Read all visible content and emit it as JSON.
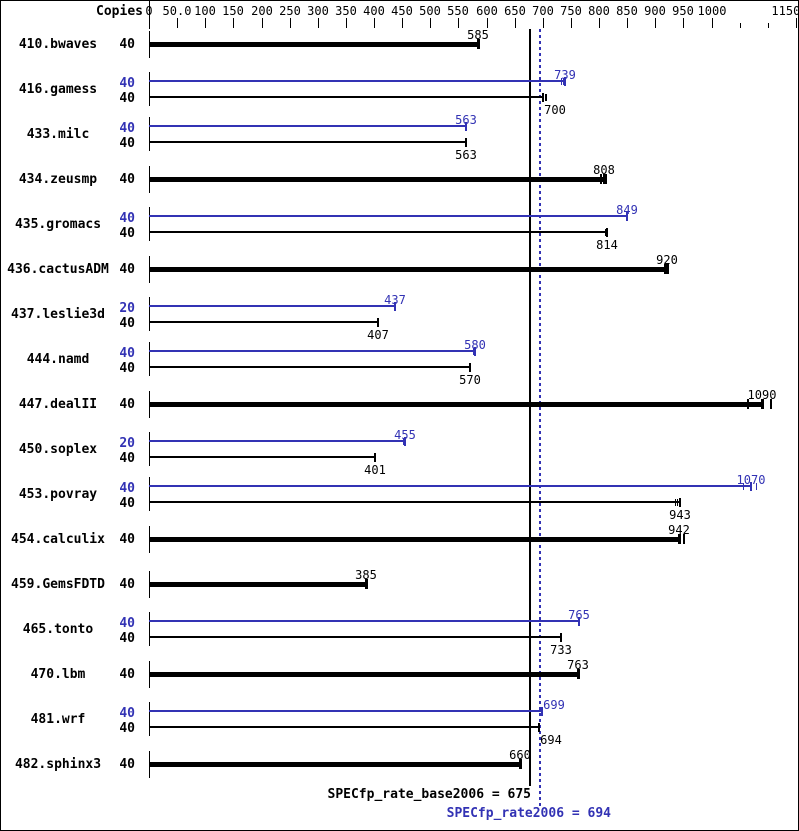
{
  "header": {
    "copies_label": "Copies"
  },
  "colors": {
    "base": "#000000",
    "peak": "#3232b4",
    "background": "#ffffff"
  },
  "footer": {
    "base_label": "SPECfp_rate_base2006 = 675",
    "peak_label": "SPECfp_rate2006 = 694"
  },
  "chart_data": {
    "type": "bar",
    "orientation": "horizontal",
    "title": "",
    "xlabel": "",
    "ylabel": "Copies",
    "xlim": [
      0,
      1150
    ],
    "grid": false,
    "axis": {
      "tick_step": 50,
      "labeled_ticks": [
        {
          "v": 0,
          "label": "0"
        },
        {
          "v": 50,
          "label": "50.0"
        },
        {
          "v": 100,
          "label": "100"
        },
        {
          "v": 150,
          "label": "150"
        },
        {
          "v": 200,
          "label": "200"
        },
        {
          "v": 250,
          "label": "250"
        },
        {
          "v": 300,
          "label": "300"
        },
        {
          "v": 350,
          "label": "350"
        },
        {
          "v": 400,
          "label": "400"
        },
        {
          "v": 450,
          "label": "450"
        },
        {
          "v": 500,
          "label": "500"
        },
        {
          "v": 550,
          "label": "550"
        },
        {
          "v": 600,
          "label": "600"
        },
        {
          "v": 650,
          "label": "650"
        },
        {
          "v": 700,
          "label": "700"
        },
        {
          "v": 750,
          "label": "750"
        },
        {
          "v": 800,
          "label": "800"
        },
        {
          "v": 850,
          "label": "850"
        },
        {
          "v": 900,
          "label": "900"
        },
        {
          "v": 950,
          "label": "950"
        },
        {
          "v": 1000,
          "label": "1000"
        },
        {
          "v": 1150,
          "label": "1150"
        }
      ],
      "short_ticks": [
        1050,
        1100
      ]
    },
    "reference_lines": [
      {
        "name": "SPECfp_rate_base2006",
        "value": 675,
        "style": "solid",
        "series": "base"
      },
      {
        "name": "SPECfp_rate2006",
        "value": 694,
        "style": "dotted",
        "series": "peak"
      }
    ],
    "benchmarks": [
      {
        "name": "410.bwaves",
        "bars": [
          {
            "series": "base",
            "copies": "40",
            "value": 585,
            "marks": [],
            "label_dx": 0
          }
        ]
      },
      {
        "name": "416.gamess",
        "bars": [
          {
            "series": "peak",
            "copies": "40",
            "value": 739,
            "marks": [
              -7,
              -3
            ],
            "label_dx": 0
          },
          {
            "series": "base",
            "copies": "40",
            "value": 700,
            "marks": [
              3,
              6
            ],
            "label_dx": 12
          }
        ]
      },
      {
        "name": "433.milc",
        "bars": [
          {
            "series": "peak",
            "copies": "40",
            "value": 563,
            "marks": [],
            "label_dx": 0
          },
          {
            "series": "base",
            "copies": "40",
            "value": 563,
            "marks": [],
            "label_dx": 0
          }
        ]
      },
      {
        "name": "434.zeusmp",
        "bars": [
          {
            "series": "base",
            "copies": "40",
            "value": 808,
            "marks": [
              -7,
              3
            ],
            "label_dx": 0
          }
        ]
      },
      {
        "name": "435.gromacs",
        "bars": [
          {
            "series": "peak",
            "copies": "40",
            "value": 849,
            "marks": [],
            "label_dx": 0
          },
          {
            "series": "base",
            "copies": "40",
            "value": 814,
            "marks": [
              -4
            ],
            "label_dx": 0
          }
        ]
      },
      {
        "name": "436.cactusADM",
        "bars": [
          {
            "series": "base",
            "copies": "40",
            "value": 920,
            "marks": [
              -4
            ],
            "label_dx": 0
          }
        ]
      },
      {
        "name": "437.leslie3d",
        "bars": [
          {
            "series": "peak",
            "copies": "20",
            "value": 437,
            "marks": [],
            "label_dx": 0
          },
          {
            "series": "base",
            "copies": "40",
            "value": 407,
            "marks": [],
            "label_dx": 0
          }
        ]
      },
      {
        "name": "444.namd",
        "bars": [
          {
            "series": "peak",
            "copies": "40",
            "value": 580,
            "marks": [
              -4
            ],
            "label_dx": 0
          },
          {
            "series": "base",
            "copies": "40",
            "value": 570,
            "marks": [],
            "label_dx": 0
          }
        ]
      },
      {
        "name": "447.dealII",
        "bars": [
          {
            "series": "base",
            "copies": "40",
            "value": 1090,
            "marks": [
              -27,
              13
            ],
            "label_dx": 0
          }
        ]
      },
      {
        "name": "450.soplex",
        "bars": [
          {
            "series": "peak",
            "copies": "20",
            "value": 455,
            "marks": [
              -4
            ],
            "label_dx": 0
          },
          {
            "series": "base",
            "copies": "40",
            "value": 401,
            "marks": [],
            "label_dx": 0
          }
        ]
      },
      {
        "name": "453.povray",
        "bars": [
          {
            "series": "peak",
            "copies": "40",
            "value": 1070,
            "marks": [
              -14,
              9
            ],
            "label_dx": 0
          },
          {
            "series": "base",
            "copies": "40",
            "value": 943,
            "marks": [
              -8,
              -4
            ],
            "label_dx": 0
          }
        ]
      },
      {
        "name": "454.calculix",
        "bars": [
          {
            "series": "base",
            "copies": "40",
            "value": 942,
            "marks": [
              8
            ],
            "label_dx": 0
          }
        ]
      },
      {
        "name": "459.GemsFDTD",
        "bars": [
          {
            "series": "base",
            "copies": "40",
            "value": 385,
            "marks": [],
            "label_dx": 0
          }
        ]
      },
      {
        "name": "465.tonto",
        "bars": [
          {
            "series": "peak",
            "copies": "40",
            "value": 765,
            "marks": [],
            "label_dx": 0
          },
          {
            "series": "base",
            "copies": "40",
            "value": 733,
            "marks": [],
            "label_dx": 0
          }
        ]
      },
      {
        "name": "470.lbm",
        "bars": [
          {
            "series": "base",
            "copies": "40",
            "value": 763,
            "marks": [],
            "label_dx": 0
          }
        ]
      },
      {
        "name": "481.wrf",
        "bars": [
          {
            "series": "peak",
            "copies": "40",
            "value": 699,
            "marks": [],
            "label_dx": 12
          },
          {
            "series": "base",
            "copies": "40",
            "value": 694,
            "marks": [],
            "label_dx": 12
          }
        ]
      },
      {
        "name": "482.sphinx3",
        "bars": [
          {
            "series": "base",
            "copies": "40",
            "value": 660,
            "marks": [],
            "label_dx": 0
          }
        ]
      }
    ]
  }
}
